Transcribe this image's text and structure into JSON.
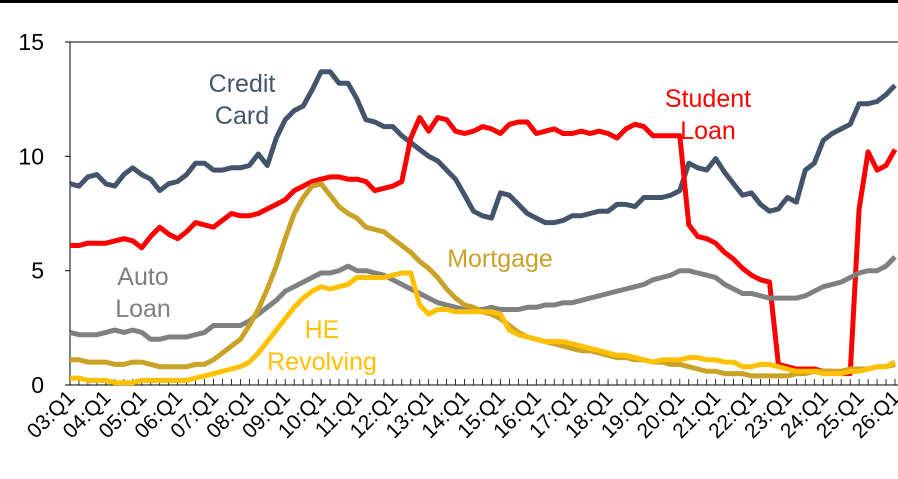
{
  "chart_data": {
    "type": "line",
    "categories": [
      "03:Q1",
      null,
      null,
      null,
      "04:Q1",
      null,
      null,
      null,
      "05:Q1",
      null,
      null,
      null,
      "06:Q1",
      null,
      null,
      null,
      "07:Q1",
      null,
      null,
      null,
      "08:Q1",
      null,
      null,
      null,
      "09:Q1",
      null,
      null,
      null,
      "10:Q1",
      null,
      null,
      null,
      "11:Q1",
      null,
      null,
      null,
      "12:Q1",
      null,
      null,
      null,
      "13:Q1",
      null,
      null,
      null,
      "14:Q1",
      null,
      null,
      null,
      "15:Q1",
      null,
      null,
      null,
      "16:Q1",
      null,
      null,
      null,
      "17:Q1",
      null,
      null,
      null,
      "18:Q1",
      null,
      null,
      null,
      "19:Q1",
      null,
      null,
      null,
      "20:Q1",
      null,
      null,
      null,
      "21:Q1",
      null,
      null,
      null,
      "22:Q1",
      null,
      null,
      null,
      "23:Q1",
      null,
      null,
      null,
      "24:Q1",
      null,
      null,
      null,
      "25:Q1",
      null,
      null,
      null,
      "26:Q1"
    ],
    "ylim": [
      0,
      15
    ],
    "yticks": [
      0,
      5,
      10,
      15
    ],
    "grid": false,
    "series": [
      {
        "name": "Credit Card",
        "color": "#44546a",
        "values": [
          8.8,
          8.7,
          9.1,
          9.2,
          8.8,
          8.7,
          9.2,
          9.5,
          9.2,
          9.0,
          8.5,
          8.8,
          8.9,
          9.2,
          9.7,
          9.7,
          9.4,
          9.4,
          9.5,
          9.5,
          9.6,
          10.1,
          9.6,
          10.8,
          11.6,
          12.0,
          12.2,
          12.9,
          13.7,
          13.7,
          13.2,
          13.2,
          12.5,
          11.6,
          11.5,
          11.3,
          11.3,
          10.9,
          10.6,
          10.3,
          10.0,
          9.8,
          9.4,
          9.0,
          8.3,
          7.6,
          7.4,
          7.3,
          8.4,
          8.3,
          7.9,
          7.5,
          7.3,
          7.1,
          7.1,
          7.2,
          7.4,
          7.4,
          7.5,
          7.6,
          7.6,
          7.9,
          7.9,
          7.8,
          8.2,
          8.2,
          8.2,
          8.3,
          8.5,
          9.7,
          9.5,
          9.4,
          9.9,
          9.3,
          8.8,
          8.3,
          8.4,
          7.9,
          7.6,
          7.7,
          8.2,
          8.0,
          9.4,
          9.7,
          10.7,
          11.0,
          11.2,
          11.4,
          12.3,
          12.3,
          12.4,
          12.7,
          13.1
        ]
      },
      {
        "name": "Student Loan",
        "color": "#ff0000",
        "values": [
          6.1,
          6.1,
          6.2,
          6.2,
          6.2,
          6.3,
          6.4,
          6.3,
          6.0,
          6.5,
          6.9,
          6.6,
          6.4,
          6.7,
          7.1,
          7.0,
          6.9,
          7.2,
          7.5,
          7.4,
          7.4,
          7.5,
          7.7,
          7.9,
          8.1,
          8.5,
          8.7,
          8.9,
          9.0,
          9.1,
          9.1,
          9.0,
          9.0,
          8.9,
          8.5,
          8.6,
          8.7,
          8.9,
          10.8,
          11.7,
          11.1,
          11.7,
          11.6,
          11.1,
          11.0,
          11.1,
          11.3,
          11.2,
          11.0,
          11.4,
          11.5,
          11.5,
          11.0,
          11.1,
          11.2,
          11.0,
          11.0,
          11.1,
          11.0,
          11.1,
          11.0,
          10.8,
          11.2,
          11.4,
          11.3,
          10.9,
          10.9,
          10.9,
          10.9,
          7.0,
          6.5,
          6.4,
          6.2,
          5.8,
          5.5,
          5.1,
          4.8,
          4.6,
          4.5,
          0.9,
          0.8,
          0.7,
          0.7,
          0.7,
          0.6,
          0.6,
          0.5,
          0.5,
          7.7,
          10.2,
          9.4,
          9.6,
          10.3
        ]
      },
      {
        "name": "Auto Loan",
        "color": "#808080",
        "values": [
          2.3,
          2.2,
          2.2,
          2.2,
          2.3,
          2.4,
          2.3,
          2.4,
          2.3,
          2.0,
          2.0,
          2.1,
          2.1,
          2.1,
          2.2,
          2.3,
          2.6,
          2.6,
          2.6,
          2.6,
          2.8,
          3.1,
          3.4,
          3.7,
          4.1,
          4.3,
          4.5,
          4.7,
          4.9,
          4.9,
          5.0,
          5.2,
          5.0,
          5.0,
          4.9,
          4.8,
          4.6,
          4.4,
          4.2,
          4.0,
          3.8,
          3.6,
          3.5,
          3.4,
          3.3,
          3.3,
          3.3,
          3.4,
          3.3,
          3.3,
          3.3,
          3.4,
          3.4,
          3.5,
          3.5,
          3.6,
          3.6,
          3.7,
          3.8,
          3.9,
          4.0,
          4.1,
          4.2,
          4.3,
          4.4,
          4.6,
          4.7,
          4.8,
          5.0,
          5.0,
          4.9,
          4.8,
          4.7,
          4.4,
          4.2,
          4.0,
          4.0,
          3.9,
          3.8,
          3.8,
          3.8,
          3.8,
          3.9,
          4.1,
          4.3,
          4.4,
          4.5,
          4.7,
          4.9,
          5.0,
          5.0,
          5.2,
          5.6
        ]
      },
      {
        "name": "Mortgage",
        "color": "#c9a227",
        "values": [
          1.1,
          1.1,
          1.0,
          1.0,
          1.0,
          0.9,
          0.9,
          1.0,
          1.0,
          0.9,
          0.8,
          0.8,
          0.8,
          0.8,
          0.9,
          0.9,
          1.1,
          1.4,
          1.7,
          2.0,
          2.6,
          3.3,
          4.2,
          5.2,
          6.4,
          7.5,
          8.2,
          8.7,
          8.8,
          8.3,
          7.8,
          7.5,
          7.3,
          6.9,
          6.8,
          6.7,
          6.4,
          6.1,
          5.8,
          5.4,
          5.1,
          4.7,
          4.2,
          3.8,
          3.5,
          3.4,
          3.2,
          3.1,
          2.9,
          2.6,
          2.3,
          2.1,
          2.0,
          1.9,
          1.8,
          1.7,
          1.6,
          1.5,
          1.5,
          1.4,
          1.3,
          1.2,
          1.2,
          1.1,
          1.1,
          1.0,
          1.0,
          0.9,
          0.9,
          0.8,
          0.7,
          0.6,
          0.6,
          0.5,
          0.5,
          0.5,
          0.4,
          0.4,
          0.4,
          0.4,
          0.4,
          0.5,
          0.5,
          0.6,
          0.6,
          0.6,
          0.6,
          0.7,
          0.7,
          0.7,
          0.8,
          0.8,
          0.9
        ]
      },
      {
        "name": "HE Revolving",
        "color": "#ffc000",
        "values": [
          0.3,
          0.3,
          0.2,
          0.2,
          0.2,
          0.1,
          0.1,
          0.1,
          0.2,
          0.2,
          0.2,
          0.2,
          0.2,
          0.2,
          0.3,
          0.4,
          0.5,
          0.6,
          0.7,
          0.8,
          1.0,
          1.4,
          1.9,
          2.4,
          2.9,
          3.4,
          3.8,
          4.1,
          4.3,
          4.2,
          4.3,
          4.4,
          4.7,
          4.7,
          4.7,
          4.7,
          4.8,
          4.9,
          4.9,
          3.5,
          3.1,
          3.3,
          3.3,
          3.2,
          3.2,
          3.2,
          3.2,
          3.2,
          3.1,
          2.4,
          2.2,
          2.1,
          2.0,
          1.9,
          1.9,
          1.9,
          1.8,
          1.7,
          1.6,
          1.5,
          1.4,
          1.3,
          1.3,
          1.2,
          1.1,
          1.0,
          1.1,
          1.1,
          1.1,
          1.2,
          1.2,
          1.1,
          1.1,
          1.0,
          1.0,
          0.8,
          0.8,
          0.9,
          0.9,
          0.8,
          0.7,
          0.6,
          0.6,
          0.6,
          0.5,
          0.5,
          0.5,
          0.6,
          0.6,
          0.7,
          0.8,
          0.8,
          1.0
        ]
      }
    ]
  }
}
